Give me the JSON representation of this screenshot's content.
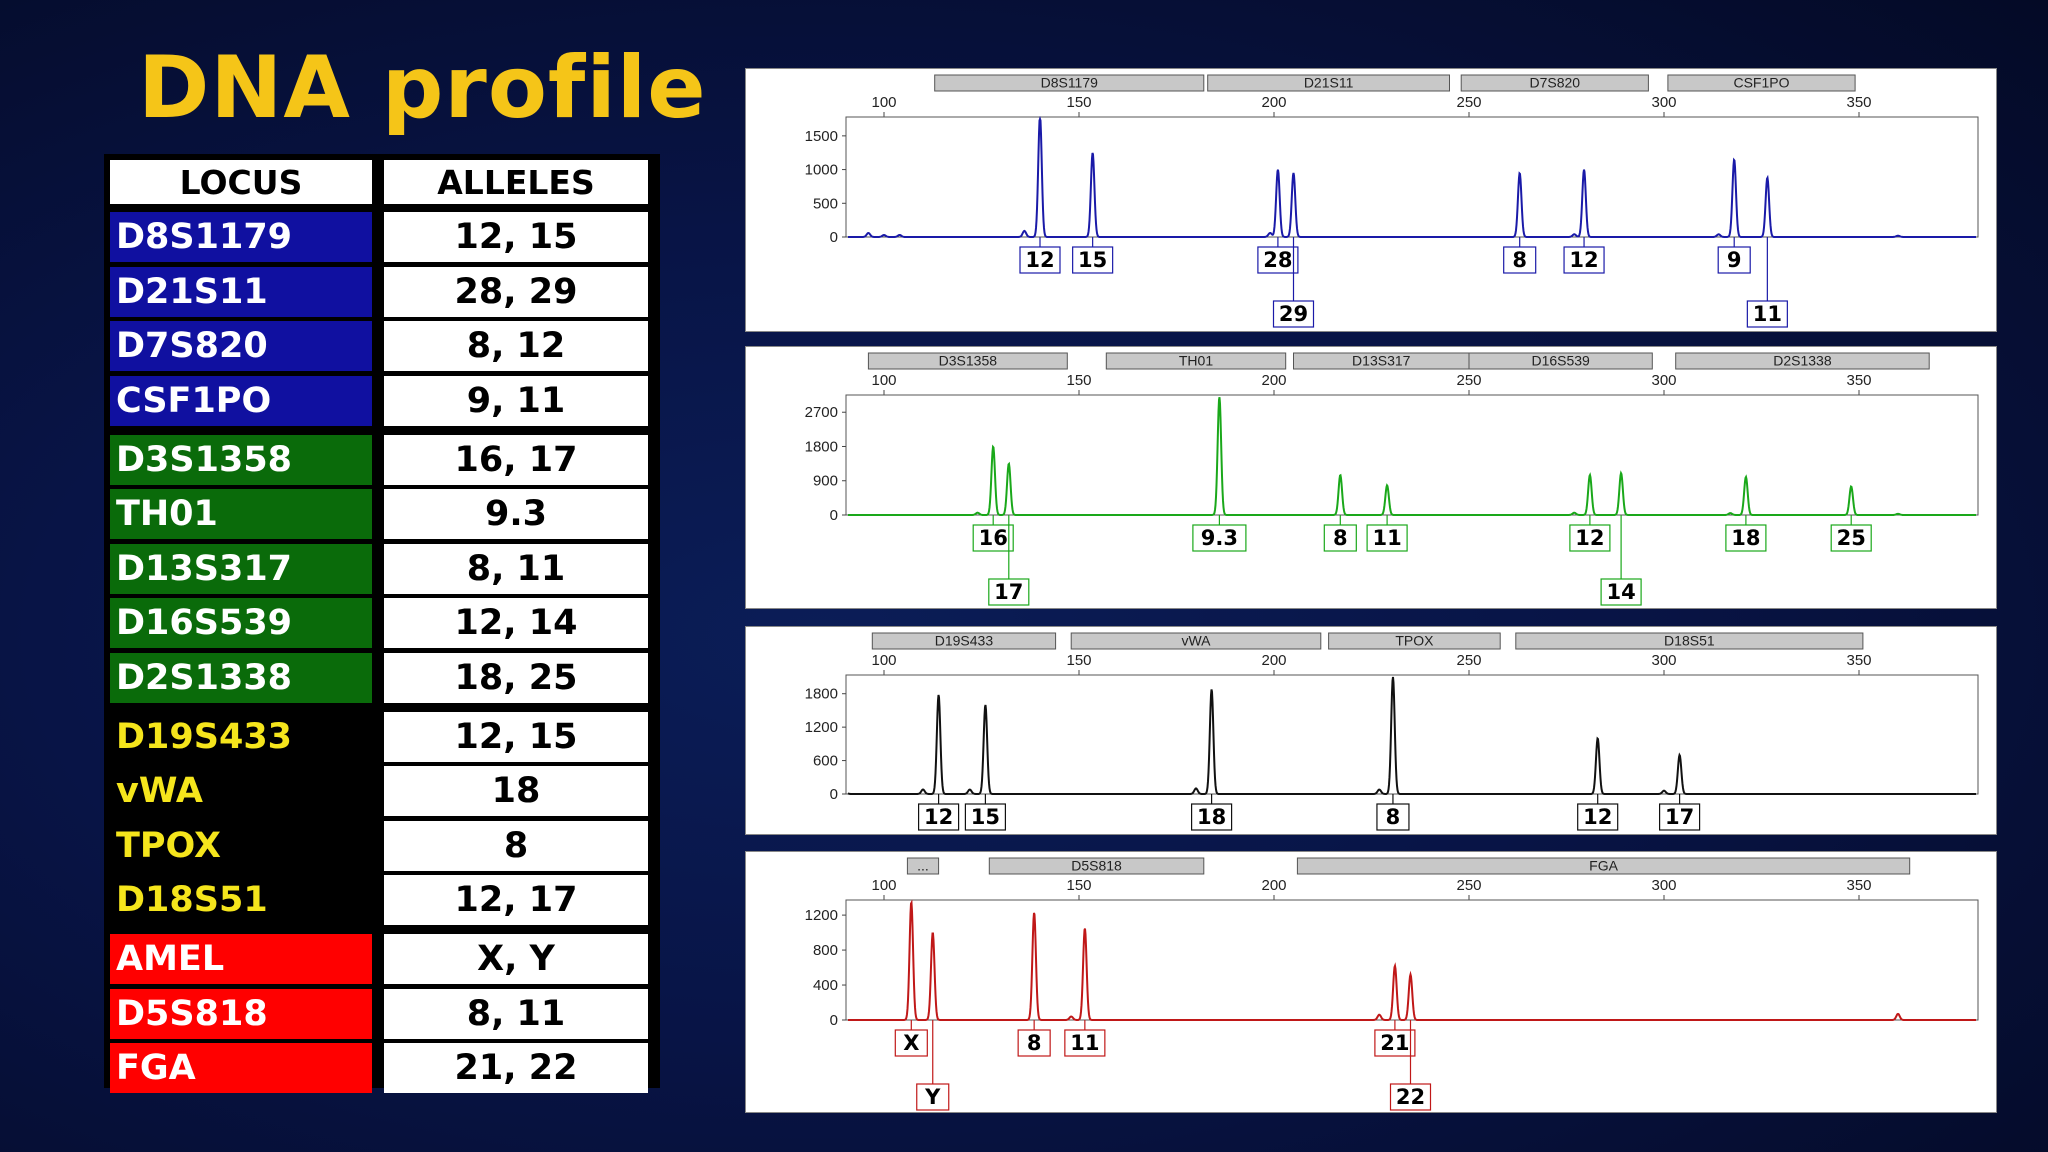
{
  "title": "DNA profile",
  "table": {
    "headers": [
      "LOCUS",
      "ALLELES"
    ],
    "rows": [
      {
        "locus": "D8S1179",
        "alleles": "12, 15",
        "color": "#1010a0",
        "text": "#ffffff"
      },
      {
        "locus": "D21S11",
        "alleles": "28, 29",
        "color": "#1010a0",
        "text": "#ffffff"
      },
      {
        "locus": "D7S820",
        "alleles": "8, 12",
        "color": "#1010a0",
        "text": "#ffffff"
      },
      {
        "locus": "CSF1PO",
        "alleles": "9, 11",
        "color": "#1010a0",
        "text": "#ffffff"
      },
      {
        "locus": "D3S1358",
        "alleles": "16, 17",
        "color": "#0a6b0a",
        "text": "#ffffff"
      },
      {
        "locus": "TH01",
        "alleles": "9.3",
        "color": "#0a6b0a",
        "text": "#ffffff"
      },
      {
        "locus": "D13S317",
        "alleles": "8, 11",
        "color": "#0a6b0a",
        "text": "#ffffff"
      },
      {
        "locus": "D16S539",
        "alleles": "12, 14",
        "color": "#0a6b0a",
        "text": "#ffffff"
      },
      {
        "locus": "D2S1338",
        "alleles": "18, 25",
        "color": "#0a6b0a",
        "text": "#ffffff"
      },
      {
        "locus": "D19S433",
        "alleles": "12, 15",
        "color": "#000000",
        "text": "#f5e51c"
      },
      {
        "locus": "vWA",
        "alleles": "18",
        "color": "#000000",
        "text": "#f5e51c"
      },
      {
        "locus": "TPOX",
        "alleles": "8",
        "color": "#000000",
        "text": "#f5e51c"
      },
      {
        "locus": "D18S51",
        "alleles": "12, 17",
        "color": "#000000",
        "text": "#f5e51c"
      },
      {
        "locus": "AMEL",
        "alleles": "X, Y",
        "color": "#ff0000",
        "text": "#ffffff"
      },
      {
        "locus": "D5S818",
        "alleles": "8, 11",
        "color": "#ff0000",
        "text": "#ffffff"
      },
      {
        "locus": "FGA",
        "alleles": "21, 22",
        "color": "#ff0000",
        "text": "#ffffff"
      }
    ]
  },
  "chart_data": [
    {
      "type": "line",
      "color": "#1a1aa8",
      "xlim": [
        100,
        380
      ],
      "xticks": [
        100,
        150,
        200,
        250,
        300,
        350
      ],
      "ylim": [
        0,
        1750
      ],
      "yticks": [
        0,
        500,
        1000,
        1500
      ],
      "loci": [
        {
          "name": "D8S1179",
          "range": [
            113,
            182
          ]
        },
        {
          "name": "D21S11",
          "range": [
            183,
            245
          ]
        },
        {
          "name": "D7S820",
          "range": [
            248,
            296
          ]
        },
        {
          "name": "CSF1PO",
          "range": [
            301,
            349
          ]
        }
      ],
      "peaks": [
        {
          "x": 140,
          "h": 1800,
          "label": "12"
        },
        {
          "x": 153.5,
          "h": 1250,
          "label": "15"
        },
        {
          "x": 201,
          "h": 1000,
          "label": "28"
        },
        {
          "x": 205,
          "h": 950,
          "label": "29",
          "offset": true
        },
        {
          "x": 263,
          "h": 950,
          "label": "8"
        },
        {
          "x": 279.5,
          "h": 1000,
          "label": "12"
        },
        {
          "x": 318,
          "h": 1150,
          "label": "9"
        },
        {
          "x": 326.5,
          "h": 880,
          "label": "11",
          "offset": true
        }
      ],
      "minor": [
        [
          96,
          60
        ],
        [
          100,
          30
        ],
        [
          104,
          30
        ],
        [
          136,
          90
        ],
        [
          199,
          60
        ],
        [
          277,
          40
        ],
        [
          314,
          40
        ],
        [
          360,
          20
        ]
      ]
    },
    {
      "type": "line",
      "color": "#1aa81a",
      "xlim": [
        100,
        380
      ],
      "xticks": [
        100,
        150,
        200,
        250,
        300,
        350
      ],
      "ylim": [
        0,
        3100
      ],
      "yticks": [
        0,
        900,
        1800,
        2700
      ],
      "loci": [
        {
          "name": "D3S1358",
          "range": [
            96,
            147
          ]
        },
        {
          "name": "TH01",
          "range": [
            157,
            203
          ]
        },
        {
          "name": "D13S317",
          "range": [
            205,
            250
          ]
        },
        {
          "name": "D16S539",
          "range": [
            250,
            297
          ]
        },
        {
          "name": "D2S1338",
          "range": [
            303,
            368
          ]
        }
      ],
      "peaks": [
        {
          "x": 128,
          "h": 1800,
          "label": "16"
        },
        {
          "x": 132,
          "h": 1350,
          "label": "17",
          "offset": true
        },
        {
          "x": 186,
          "h": 3100,
          "label": "9.3"
        },
        {
          "x": 217,
          "h": 1050,
          "label": "8"
        },
        {
          "x": 229,
          "h": 780,
          "label": "11"
        },
        {
          "x": 281,
          "h": 1050,
          "label": "12"
        },
        {
          "x": 289,
          "h": 1100,
          "label": "14",
          "offset": true
        },
        {
          "x": 321,
          "h": 1000,
          "label": "18"
        },
        {
          "x": 348,
          "h": 750,
          "label": "25"
        }
      ],
      "minor": [
        [
          124,
          60
        ],
        [
          277,
          60
        ],
        [
          317,
          50
        ],
        [
          360,
          30
        ]
      ]
    },
    {
      "type": "line",
      "color": "#111111",
      "xlim": [
        100,
        380
      ],
      "xticks": [
        100,
        150,
        200,
        250,
        300,
        350
      ],
      "ylim": [
        0,
        2100
      ],
      "yticks": [
        0,
        600,
        1200,
        1800
      ],
      "loci": [
        {
          "name": "D19S433",
          "range": [
            97,
            144
          ]
        },
        {
          "name": "vWA",
          "range": [
            148,
            212
          ]
        },
        {
          "name": "TPOX",
          "range": [
            214,
            258
          ]
        },
        {
          "name": "D18S51",
          "range": [
            262,
            351
          ]
        }
      ],
      "peaks": [
        {
          "x": 114,
          "h": 1780,
          "label": "12"
        },
        {
          "x": 126,
          "h": 1600,
          "label": "15"
        },
        {
          "x": 184,
          "h": 1880,
          "label": "18"
        },
        {
          "x": 230.5,
          "h": 2100,
          "label": "8"
        },
        {
          "x": 283,
          "h": 1000,
          "label": "12"
        },
        {
          "x": 304,
          "h": 700,
          "label": "17"
        }
      ],
      "minor": [
        [
          90,
          60
        ],
        [
          110,
          80
        ],
        [
          122,
          80
        ],
        [
          180,
          100
        ],
        [
          227,
          80
        ],
        [
          300,
          60
        ]
      ]
    },
    {
      "type": "line",
      "color": "#c01818",
      "xlim": [
        100,
        380
      ],
      "xticks": [
        100,
        150,
        200,
        250,
        300,
        350
      ],
      "ylim": [
        0,
        1350
      ],
      "yticks": [
        0,
        400,
        800,
        1200
      ],
      "loci": [
        {
          "name": "...",
          "range": [
            106,
            114
          ]
        },
        {
          "name": "D5S818",
          "range": [
            127,
            182
          ]
        },
        {
          "name": "FGA",
          "range": [
            206,
            363
          ]
        }
      ],
      "peaks": [
        {
          "x": 107,
          "h": 1350,
          "label": "X"
        },
        {
          "x": 112.5,
          "h": 1000,
          "label": "Y",
          "offset": true
        },
        {
          "x": 138.5,
          "h": 1230,
          "label": "8"
        },
        {
          "x": 151.5,
          "h": 1050,
          "label": "11"
        },
        {
          "x": 231,
          "h": 620,
          "label": "21"
        },
        {
          "x": 235,
          "h": 520,
          "label": "22",
          "offset": true
        }
      ],
      "minor": [
        [
          148,
          40
        ],
        [
          227,
          60
        ],
        [
          360,
          70
        ]
      ]
    }
  ]
}
